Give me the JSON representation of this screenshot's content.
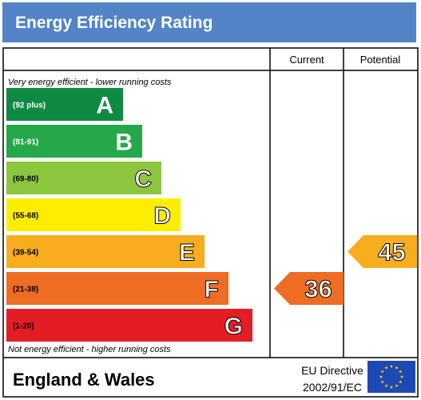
{
  "title": "Energy Efficiency Rating",
  "columns": {
    "current": "Current",
    "potential": "Potential"
  },
  "captions": {
    "top": "Very energy efficient - lower running costs",
    "bottom": "Not energy efficient - higher running costs"
  },
  "footer": {
    "region": "England & Wales",
    "directive_line1": "EU Directive",
    "directive_line2": "2002/91/EC"
  },
  "colors": {
    "header": "#5284c7",
    "flag": "#1e49b4",
    "flag_stars": "#ffdd00"
  },
  "chart_data": {
    "type": "bar",
    "title": "Energy Efficiency Rating",
    "categories": [
      "A",
      "B",
      "C",
      "D",
      "E",
      "F",
      "G"
    ],
    "bands": [
      {
        "letter": "A",
        "range": "(92 plus)",
        "min": 92,
        "max": 100,
        "color": "#0f8a43",
        "text_color": "#ffffff"
      },
      {
        "letter": "B",
        "range": "(81-91)",
        "min": 81,
        "max": 91,
        "color": "#24a84a",
        "text_color": "#ffffff"
      },
      {
        "letter": "C",
        "range": "(69-80)",
        "min": 69,
        "max": 80,
        "color": "#8cc63f",
        "text_color": "#000000"
      },
      {
        "letter": "D",
        "range": "(55-68)",
        "min": 55,
        "max": 68,
        "color": "#ffed00",
        "text_color": "#000000"
      },
      {
        "letter": "E",
        "range": "(39-54)",
        "min": 39,
        "max": 54,
        "color": "#f7ad1e",
        "text_color": "#000000"
      },
      {
        "letter": "F",
        "range": "(21-38)",
        "min": 21,
        "max": 38,
        "color": "#ef6c23",
        "text_color": "#000000"
      },
      {
        "letter": "G",
        "range": "(1-20)",
        "min": 1,
        "max": 20,
        "color": "#e41d25",
        "text_color": "#000000"
      }
    ],
    "ratings": [
      {
        "name": "Current",
        "value": 36,
        "band": "F",
        "color": "#ef6c23"
      },
      {
        "name": "Potential",
        "value": 45,
        "band": "E",
        "color": "#f7ad1e"
      }
    ]
  }
}
